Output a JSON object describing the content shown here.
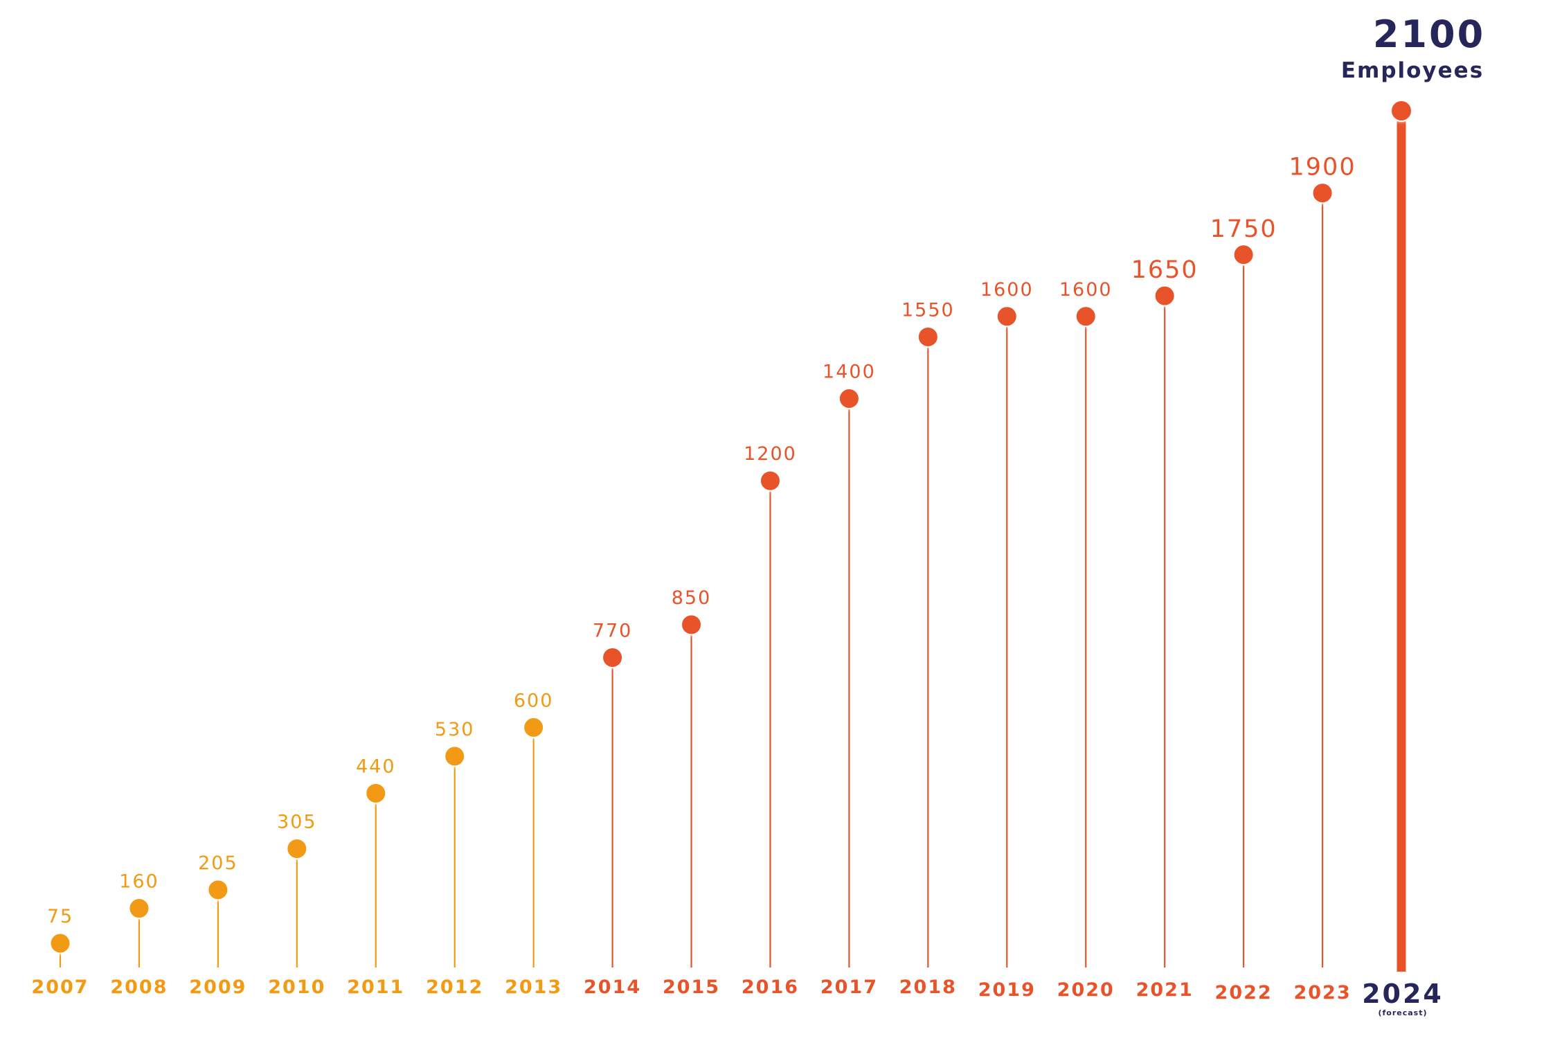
{
  "chart_data": {
    "type": "lollipop",
    "x": [
      "2007",
      "2008",
      "2009",
      "2010",
      "2011",
      "2012",
      "2013",
      "2014",
      "2015",
      "2016",
      "2017",
      "2018",
      "2019",
      "2020",
      "2021",
      "2022",
      "2023",
      "2024"
    ],
    "values": [
      75,
      160,
      205,
      305,
      440,
      530,
      600,
      770,
      850,
      1200,
      1400,
      1550,
      1600,
      1600,
      1650,
      1750,
      1900,
      2100
    ],
    "value_labels": [
      "75",
      "160",
      "205",
      "305",
      "440",
      "530",
      "600",
      "770",
      "850",
      "1200",
      "1400",
      "1550",
      "1600",
      "1600",
      "1650",
      "1750",
      "1900",
      "2100"
    ],
    "highlight": {
      "year": "2024",
      "value_label": "2100",
      "unit": "Employees",
      "note": "(forecast)"
    },
    "grid": false,
    "colors": {
      "early": "#F29A12",
      "late": "#E8532A",
      "highlight_text": "#27265A"
    },
    "early_until": "2013"
  }
}
